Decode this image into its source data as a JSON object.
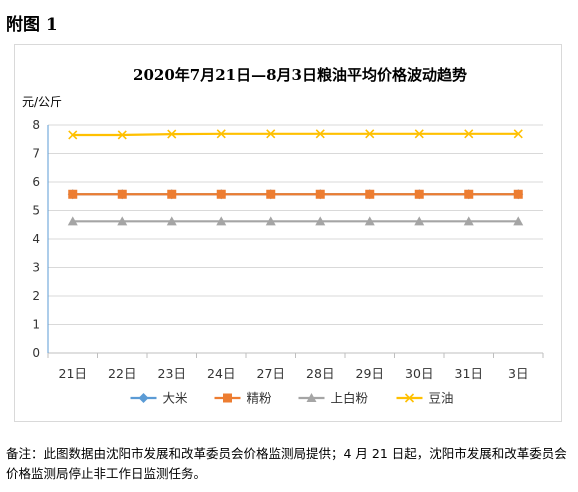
{
  "page": {
    "heading": "附图 1",
    "footnote": "备注：此图数据由沈阳市发展和改革委员会价格监测局提供；4 月 21 日起，沈阳市发展和改革委员会价格监测局停止非工作日监测任务。"
  },
  "chart_data": {
    "type": "line",
    "title": "2020年7月21日—8月3日粮油平均价格波动趋势",
    "ylabel": "元/公斤",
    "xlabel": "",
    "ylim": [
      0,
      8
    ],
    "yticks": [
      0,
      1,
      2,
      3,
      4,
      5,
      6,
      7,
      8
    ],
    "categories": [
      "21日",
      "22日",
      "23日",
      "24日",
      "27日",
      "28日",
      "29日",
      "30日",
      "31日",
      "3日"
    ],
    "grid": true,
    "legend_position": "bottom",
    "series": [
      {
        "name": "大米",
        "color": "#5B9BD5",
        "marker": "diamond",
        "values": [
          5.57,
          5.57,
          5.57,
          5.57,
          5.57,
          5.57,
          5.57,
          5.57,
          5.57,
          5.57
        ]
      },
      {
        "name": "精粉",
        "color": "#ED7D31",
        "marker": "square",
        "values": [
          5.57,
          5.57,
          5.57,
          5.57,
          5.57,
          5.57,
          5.57,
          5.57,
          5.57,
          5.57
        ]
      },
      {
        "name": "上白粉",
        "color": "#A5A5A5",
        "marker": "triangle",
        "values": [
          4.62,
          4.62,
          4.62,
          4.62,
          4.62,
          4.62,
          4.62,
          4.62,
          4.62,
          4.62
        ]
      },
      {
        "name": "豆油",
        "color": "#FFC000",
        "marker": "x",
        "values": [
          7.65,
          7.65,
          7.68,
          7.69,
          7.69,
          7.69,
          7.69,
          7.69,
          7.69,
          7.69
        ]
      }
    ]
  }
}
